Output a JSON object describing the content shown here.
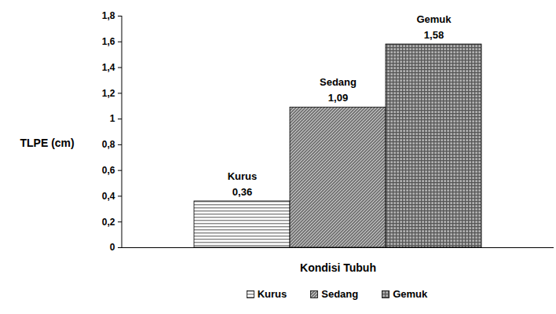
{
  "chart_data": {
    "type": "bar",
    "categories": [
      null
    ],
    "series": [
      {
        "name": "Kurus",
        "color": "#8c8c8c",
        "values": [
          0.36
        ],
        "value_labels": [
          "0,36"
        ]
      },
      {
        "name": "Sedang",
        "color": "#7a7a7a",
        "values": [
          1.09
        ],
        "value_labels": [
          "1,09"
        ]
      },
      {
        "name": "Gemuk",
        "color": "#555555",
        "values": [
          1.58
        ],
        "value_labels": [
          "1,58"
        ]
      }
    ],
    "x_label": "Kondisi Tubuh",
    "y_label": "TLPE (cm)",
    "ylim": [
      0,
      1.8
    ],
    "yticks": [
      0,
      {
        "value": 0.2,
        "label": "0,2"
      },
      {
        "value": 0.4,
        "label": "0,4"
      },
      {
        "value": 0.6,
        "label": "0,6"
      },
      {
        "value": 0.8,
        "label": "0,8"
      },
      1,
      {
        "value": 1.2,
        "label": "1,2"
      },
      {
        "value": 1.4,
        "label": "1,4"
      },
      {
        "value": 1.6,
        "label": "1,6"
      },
      {
        "value": 1.8,
        "label": "1,8"
      }
    ],
    "grid": false,
    "data_labels": true,
    "legend": "bottom",
    "tick_labels": "y"
  }
}
